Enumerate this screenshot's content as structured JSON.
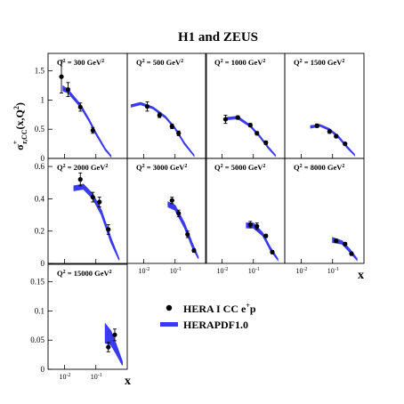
{
  "figure": {
    "title": "H1 and ZEUS",
    "ylabel_main": "σ",
    "ylabel_sub": "r,CC",
    "ylabel_sup": "+",
    "ylabel_rest": "(x,Q",
    "ylabel_rest_sup": "2",
    "ylabel_end": ")",
    "xlabel": "x"
  },
  "legend": {
    "data_label": "HERA I CC e",
    "data_label_sup": "+",
    "data_label_end": "p",
    "fit_label": "HERAPDF1.0"
  },
  "colors": {
    "fit": "#3a3aee",
    "data": "#000000",
    "frame": "#000000"
  },
  "chart_data": [
    {
      "type": "scatter",
      "title": "Q² = 300 GeV²",
      "q2_label": "Q",
      "q2_value": " = 300 GeV",
      "ylim": [
        0,
        1.8
      ],
      "yticks": [
        "0",
        "0.5",
        "1",
        "1.5"
      ],
      "xlim": [
        0.003,
        1
      ],
      "xscale": "log",
      "data": [
        {
          "x": 0.008,
          "y": 1.4,
          "err": 0.28
        },
        {
          "x": 0.013,
          "y": 1.18,
          "err": 0.12
        },
        {
          "x": 0.032,
          "y": 0.88,
          "err": 0.07
        },
        {
          "x": 0.08,
          "y": 0.48,
          "err": 0.05
        }
      ],
      "fit": [
        {
          "x": 0.009,
          "lo": 1.16,
          "hi": 1.24
        },
        {
          "x": 0.013,
          "lo": 1.12,
          "hi": 1.18
        },
        {
          "x": 0.032,
          "lo": 0.88,
          "hi": 0.93
        },
        {
          "x": 0.06,
          "lo": 0.64,
          "hi": 0.68
        },
        {
          "x": 0.1,
          "lo": 0.41,
          "hi": 0.45
        },
        {
          "x": 0.2,
          "lo": 0.14,
          "hi": 0.17
        },
        {
          "x": 0.3,
          "lo": 0.03,
          "hi": 0.05
        }
      ]
    },
    {
      "type": "scatter",
      "title": "Q² = 500 GeV²",
      "q2_label": "Q",
      "q2_value": " = 500 GeV",
      "ylim": [
        0,
        1.8
      ],
      "xlim": [
        0.003,
        1
      ],
      "xscale": "log",
      "data": [
        {
          "x": 0.013,
          "y": 0.89,
          "err": 0.08
        },
        {
          "x": 0.032,
          "y": 0.74,
          "err": 0.04
        },
        {
          "x": 0.08,
          "y": 0.55,
          "err": 0.04
        },
        {
          "x": 0.13,
          "y": 0.43,
          "err": 0.04
        }
      ],
      "fit": [
        {
          "x": 0.004,
          "lo": 0.88,
          "hi": 0.92
        },
        {
          "x": 0.008,
          "lo": 0.92,
          "hi": 0.96
        },
        {
          "x": 0.02,
          "lo": 0.85,
          "hi": 0.88
        },
        {
          "x": 0.05,
          "lo": 0.69,
          "hi": 0.72
        },
        {
          "x": 0.1,
          "lo": 0.5,
          "hi": 0.53
        },
        {
          "x": 0.2,
          "lo": 0.24,
          "hi": 0.27
        },
        {
          "x": 0.4,
          "lo": 0.04,
          "hi": 0.06
        }
      ]
    },
    {
      "type": "scatter",
      "title": "Q² = 1000 GeV²",
      "q2_label": "Q",
      "q2_value": " = 1000 GeV",
      "ylim": [
        0,
        1.8
      ],
      "xlim": [
        0.003,
        1
      ],
      "xscale": "log",
      "data": [
        {
          "x": 0.013,
          "y": 0.67,
          "err": 0.07
        },
        {
          "x": 0.032,
          "y": 0.7,
          "err": 0.03
        },
        {
          "x": 0.08,
          "y": 0.57,
          "err": 0.03
        },
        {
          "x": 0.13,
          "y": 0.43,
          "err": 0.03
        },
        {
          "x": 0.25,
          "y": 0.27,
          "err": 0.03
        }
      ],
      "fit": [
        {
          "x": 0.013,
          "lo": 0.66,
          "hi": 0.7
        },
        {
          "x": 0.032,
          "lo": 0.68,
          "hi": 0.72
        },
        {
          "x": 0.08,
          "lo": 0.54,
          "hi": 0.57
        },
        {
          "x": 0.15,
          "lo": 0.38,
          "hi": 0.41
        },
        {
          "x": 0.3,
          "lo": 0.17,
          "hi": 0.2
        },
        {
          "x": 0.5,
          "lo": 0.04,
          "hi": 0.06
        }
      ]
    },
    {
      "type": "scatter",
      "title": "Q² = 1500 GeV²",
      "q2_label": "Q",
      "q2_value": " = 1500 GeV",
      "ylim": [
        0,
        1.8
      ],
      "xlim": [
        0.003,
        1
      ],
      "xscale": "log",
      "data": [
        {
          "x": 0.032,
          "y": 0.56,
          "err": 0.03
        },
        {
          "x": 0.08,
          "y": 0.46,
          "err": 0.03
        },
        {
          "x": 0.13,
          "y": 0.38,
          "err": 0.03
        },
        {
          "x": 0.25,
          "y": 0.25,
          "err": 0.02
        }
      ],
      "fit": [
        {
          "x": 0.02,
          "lo": 0.52,
          "hi": 0.56
        },
        {
          "x": 0.04,
          "lo": 0.55,
          "hi": 0.58
        },
        {
          "x": 0.08,
          "lo": 0.48,
          "hi": 0.51
        },
        {
          "x": 0.15,
          "lo": 0.36,
          "hi": 0.39
        },
        {
          "x": 0.3,
          "lo": 0.17,
          "hi": 0.2
        },
        {
          "x": 0.5,
          "lo": 0.05,
          "hi": 0.07
        }
      ]
    },
    {
      "type": "scatter",
      "title": "Q² = 2000 GeV²",
      "q2_label": "Q",
      "q2_value": " = 2000 GeV",
      "ylim": [
        0,
        0.65
      ],
      "yticks": [
        "0",
        "0.2",
        "0.4",
        "0.6"
      ],
      "xlim": [
        0.003,
        1
      ],
      "xscale": "log",
      "data": [
        {
          "x": 0.032,
          "y": 0.52,
          "err": 0.04
        },
        {
          "x": 0.08,
          "y": 0.41,
          "err": 0.03
        },
        {
          "x": 0.13,
          "y": 0.38,
          "err": 0.03
        },
        {
          "x": 0.25,
          "y": 0.21,
          "err": 0.03
        }
      ],
      "fit": [
        {
          "x": 0.02,
          "lo": 0.45,
          "hi": 0.48
        },
        {
          "x": 0.04,
          "lo": 0.46,
          "hi": 0.49
        },
        {
          "x": 0.08,
          "lo": 0.4,
          "hi": 0.43
        },
        {
          "x": 0.15,
          "lo": 0.3,
          "hi": 0.33
        },
        {
          "x": 0.3,
          "lo": 0.13,
          "hi": 0.16
        },
        {
          "x": 0.55,
          "lo": 0.02,
          "hi": 0.03
        }
      ]
    },
    {
      "type": "scatter",
      "title": "Q² = 3000 GeV²",
      "q2_label": "Q",
      "q2_value": " = 3000 GeV",
      "ylim": [
        0,
        0.65
      ],
      "xlim": [
        0.003,
        1
      ],
      "xscale": "log",
      "data": [
        {
          "x": 0.08,
          "y": 0.39,
          "err": 0.02
        },
        {
          "x": 0.13,
          "y": 0.31,
          "err": 0.02
        },
        {
          "x": 0.25,
          "y": 0.18,
          "err": 0.02
        },
        {
          "x": 0.4,
          "y": 0.08,
          "err": 0.01
        }
      ],
      "fit": [
        {
          "x": 0.06,
          "lo": 0.35,
          "hi": 0.38
        },
        {
          "x": 0.1,
          "lo": 0.33,
          "hi": 0.36
        },
        {
          "x": 0.2,
          "lo": 0.22,
          "hi": 0.25
        },
        {
          "x": 0.35,
          "lo": 0.1,
          "hi": 0.13
        },
        {
          "x": 0.55,
          "lo": 0.03,
          "hi": 0.04
        }
      ]
    },
    {
      "type": "scatter",
      "title": "Q² = 5000 GeV²",
      "q2_label": "Q",
      "q2_value": " = 5000 GeV",
      "ylim": [
        0,
        0.65
      ],
      "xlim": [
        0.003,
        1
      ],
      "xscale": "log",
      "data": [
        {
          "x": 0.08,
          "y": 0.24,
          "err": 0.02
        },
        {
          "x": 0.13,
          "y": 0.23,
          "err": 0.02
        },
        {
          "x": 0.25,
          "y": 0.17,
          "err": 0.01
        },
        {
          "x": 0.4,
          "y": 0.07,
          "err": 0.01
        }
      ],
      "fit": [
        {
          "x": 0.06,
          "lo": 0.22,
          "hi": 0.25
        },
        {
          "x": 0.1,
          "lo": 0.22,
          "hi": 0.25
        },
        {
          "x": 0.2,
          "lo": 0.17,
          "hi": 0.19
        },
        {
          "x": 0.35,
          "lo": 0.08,
          "hi": 0.1
        },
        {
          "x": 0.6,
          "lo": 0.02,
          "hi": 0.03
        }
      ]
    },
    {
      "type": "scatter",
      "title": "Q² = 8000 GeV²",
      "q2_label": "Q",
      "q2_value": " = 8000 GeV",
      "ylim": [
        0,
        0.65
      ],
      "xlim": [
        0.003,
        1
      ],
      "xscale": "log",
      "data": [
        {
          "x": 0.13,
          "y": 0.14,
          "err": 0.01
        },
        {
          "x": 0.25,
          "y": 0.12,
          "err": 0.01
        },
        {
          "x": 0.4,
          "y": 0.06,
          "err": 0.01
        }
      ],
      "fit": [
        {
          "x": 0.1,
          "lo": 0.13,
          "hi": 0.16
        },
        {
          "x": 0.2,
          "lo": 0.12,
          "hi": 0.14
        },
        {
          "x": 0.35,
          "lo": 0.07,
          "hi": 0.09
        },
        {
          "x": 0.6,
          "lo": 0.02,
          "hi": 0.03
        }
      ]
    },
    {
      "type": "scatter",
      "title": "Q² = 15000 GeV²",
      "q2_label": "Q",
      "q2_value": " = 15000 GeV",
      "ylim": [
        0,
        0.18
      ],
      "yticks": [
        "0",
        "0.05",
        "0.1",
        "0.15"
      ],
      "xlim": [
        0.003,
        1
      ],
      "xscale": "log",
      "xticks": [
        "10",
        "10"
      ],
      "xtick_exps": [
        "-2",
        "-1"
      ],
      "data": [
        {
          "x": 0.25,
          "y": 0.038,
          "err": 0.008
        },
        {
          "x": 0.4,
          "y": 0.059,
          "err": 0.01
        }
      ],
      "fit": [
        {
          "x": 0.2,
          "lo": 0.045,
          "hi": 0.078
        },
        {
          "x": 0.3,
          "lo": 0.042,
          "hi": 0.066
        },
        {
          "x": 0.45,
          "lo": 0.026,
          "hi": 0.042
        },
        {
          "x": 0.7,
          "lo": 0.007,
          "hi": 0.013
        }
      ]
    }
  ],
  "bottom_xticks": [
    {
      "base": "10",
      "exp": "-2"
    },
    {
      "base": "10",
      "exp": "-1"
    }
  ]
}
